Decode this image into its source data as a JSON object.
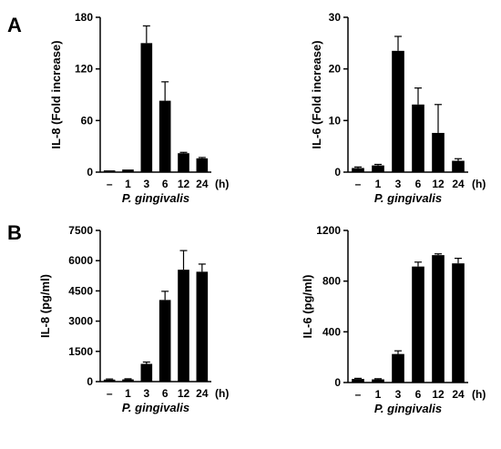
{
  "panels": [
    "A",
    "B"
  ],
  "chart_data": [
    {
      "type": "bar",
      "ylabel": "IL-8 (Fold increase)",
      "xlabel": "P. gingivalis",
      "x_unit": "(h)",
      "categories": [
        "–",
        "1",
        "3",
        "6",
        "12",
        "24"
      ],
      "values": [
        2,
        3,
        150,
        83,
        22,
        16
      ],
      "errors": [
        0,
        0,
        20,
        22,
        1,
        1
      ],
      "ylim": [
        0,
        180
      ],
      "yticks": [
        0,
        60,
        120,
        180
      ]
    },
    {
      "type": "bar",
      "ylabel": "IL-6 (Fold increase)",
      "xlabel": "P. gingivalis",
      "x_unit": "(h)",
      "categories": [
        "–",
        "1",
        "3",
        "6",
        "12",
        "24"
      ],
      "values": [
        0.8,
        1.3,
        23.5,
        13.1,
        7.6,
        2.2
      ],
      "errors": [
        0.2,
        0.2,
        2.8,
        3.2,
        5.5,
        0.4
      ],
      "ylim": [
        0,
        30
      ],
      "yticks": [
        0,
        10,
        20,
        30
      ]
    },
    {
      "type": "bar",
      "ylabel": "IL-8 (pg/ml)",
      "xlabel": "P. gingivalis",
      "x_unit": "(h)",
      "categories": [
        "–",
        "1",
        "3",
        "6",
        "12",
        "24"
      ],
      "values": [
        100,
        110,
        880,
        4050,
        5550,
        5450
      ],
      "errors": [
        30,
        30,
        90,
        430,
        950,
        380
      ],
      "ylim": [
        0,
        7500
      ],
      "yticks": [
        0,
        1500,
        3000,
        4500,
        6000,
        7500
      ]
    },
    {
      "type": "bar",
      "ylabel": "IL-6 (pg/ml)",
      "xlabel": "P. gingivalis",
      "x_unit": "(h)",
      "categories": [
        "–",
        "1",
        "3",
        "6",
        "12",
        "24"
      ],
      "values": [
        28,
        25,
        225,
        915,
        1005,
        940
      ],
      "errors": [
        5,
        5,
        25,
        35,
        10,
        40
      ],
      "ylim": [
        0,
        1200
      ],
      "yticks": [
        0,
        400,
        800,
        1200
      ]
    }
  ]
}
